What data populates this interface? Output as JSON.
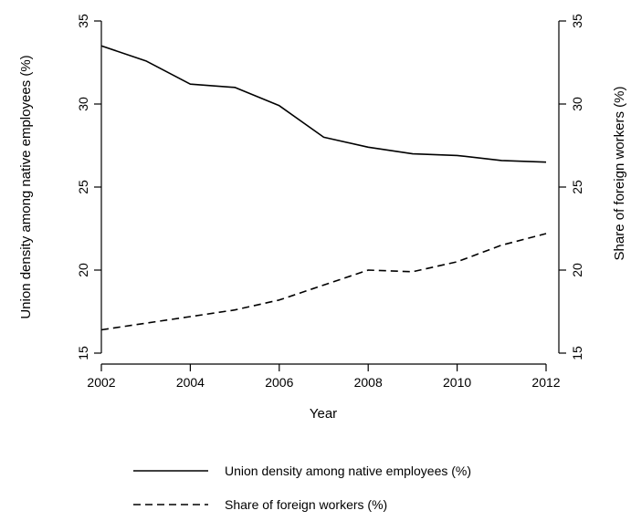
{
  "chart_data": {
    "type": "line",
    "xlabel": "Year",
    "ylabel_left": "Union density among native employees (%)",
    "ylabel_right": "Share of foreign workers (%)",
    "xlim": [
      2002,
      2012
    ],
    "ylim_left": [
      15,
      35
    ],
    "ylim_right": [
      15,
      35
    ],
    "x_ticks": [
      "2002",
      "2004",
      "2006",
      "2008",
      "2010",
      "2012"
    ],
    "y_ticks_left": [
      "15",
      "20",
      "25",
      "30",
      "35"
    ],
    "y_ticks_right": [
      "15",
      "20",
      "25",
      "30",
      "35"
    ],
    "grid": false,
    "legend_position": "bottom",
    "x": [
      2002,
      2003,
      2004,
      2005,
      2006,
      2007,
      2008,
      2009,
      2010,
      2011,
      2012
    ],
    "series": [
      {
        "name": "Union density among native employees (%)",
        "axis": "left",
        "style": "solid",
        "color": "#000000",
        "values": [
          33.5,
          32.6,
          31.2,
          31.0,
          29.9,
          28.0,
          27.4,
          27.0,
          26.9,
          26.6,
          26.5
        ]
      },
      {
        "name": "Share of foreign workers (%)",
        "axis": "right",
        "style": "dashed",
        "color": "#000000",
        "values": [
          16.4,
          16.8,
          17.2,
          17.6,
          18.2,
          19.1,
          20.0,
          19.9,
          20.5,
          21.5,
          22.2
        ]
      }
    ]
  }
}
